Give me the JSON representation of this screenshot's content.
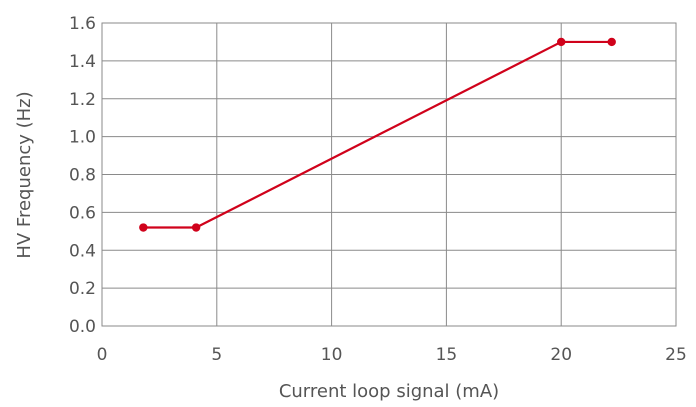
{
  "chart_data": {
    "type": "line",
    "xlabel": "Current loop signal (mA)",
    "ylabel": "HV Frequency (Hz)",
    "xlim": [
      0,
      25
    ],
    "ylim": [
      0.0,
      1.6
    ],
    "x_ticks": [
      "0",
      "5",
      "10",
      "15",
      "20",
      "25"
    ],
    "y_ticks": [
      "0.0",
      "0.2",
      "0.4",
      "0.6",
      "0.8",
      "1.0",
      "1.2",
      "1.4",
      "1.6"
    ],
    "grid": true,
    "series": [
      {
        "color": "#d0021b",
        "points": [
          {
            "x": 1.8,
            "y": 0.52
          },
          {
            "x": 4.1,
            "y": 0.52
          },
          {
            "x": 20.0,
            "y": 1.5
          },
          {
            "x": 22.2,
            "y": 1.5
          }
        ]
      }
    ]
  }
}
